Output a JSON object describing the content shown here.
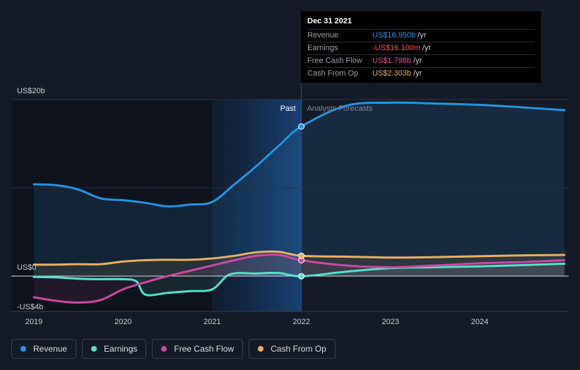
{
  "chart_data": {
    "type": "line",
    "x_ticks": [
      "2019",
      "2020",
      "2021",
      "2022",
      "2023",
      "2024"
    ],
    "y_labels": [
      "US$20b",
      "US$0",
      "-US$4b"
    ],
    "ylim": [
      -4,
      20
    ],
    "xlim": [
      2018.8,
      2024.95
    ],
    "region_labels": {
      "past": "Past",
      "forecast": "Analysts Forecasts"
    },
    "split_x": 2022.0,
    "series": [
      {
        "name": "Revenue",
        "color": "#2394df",
        "x": [
          2019.0,
          2019.25,
          2019.5,
          2019.75,
          2020.0,
          2020.25,
          2020.5,
          2020.75,
          2021.0,
          2021.25,
          2021.5,
          2021.75,
          2022.0,
          2022.5,
          2023.0,
          2023.5,
          2024.0,
          2024.5,
          2024.95
        ],
        "y": [
          10.4,
          10.3,
          9.8,
          8.8,
          8.6,
          8.3,
          7.9,
          8.1,
          8.4,
          10.4,
          12.5,
          14.8,
          16.95,
          19.3,
          19.65,
          19.55,
          19.4,
          19.1,
          18.8
        ]
      },
      {
        "name": "Earnings",
        "color": "#55e0c8",
        "x": [
          2019.0,
          2019.25,
          2019.5,
          2019.75,
          2020.0,
          2020.15,
          2020.25,
          2020.5,
          2020.75,
          2021.0,
          2021.2,
          2021.5,
          2021.75,
          2022.0,
          2022.5,
          2023.0,
          2023.5,
          2024.0,
          2024.5,
          2024.95
        ],
        "y": [
          -0.1,
          -0.15,
          -0.3,
          -0.35,
          -0.35,
          -0.6,
          -2.1,
          -1.9,
          -1.7,
          -1.5,
          0.2,
          0.3,
          0.35,
          -0.0161,
          0.5,
          0.9,
          1.0,
          1.1,
          1.25,
          1.4
        ]
      },
      {
        "name": "Free Cash Flow",
        "color": "#c94aa0",
        "x": [
          2019.0,
          2019.25,
          2019.5,
          2019.75,
          2020.0,
          2020.25,
          2020.5,
          2020.75,
          2021.0,
          2021.25,
          2021.5,
          2021.75,
          2022.0,
          2022.5,
          2023.0,
          2023.5,
          2024.0,
          2024.5,
          2024.95
        ],
        "y": [
          -2.4,
          -2.8,
          -3.0,
          -2.7,
          -1.5,
          -0.7,
          0.0,
          0.6,
          1.2,
          1.8,
          2.3,
          2.4,
          1.798,
          1.2,
          1.0,
          1.2,
          1.45,
          1.6,
          1.8
        ]
      },
      {
        "name": "Cash From Op",
        "color": "#e7b064",
        "x": [
          2019.0,
          2019.25,
          2019.5,
          2019.75,
          2020.0,
          2020.25,
          2020.5,
          2020.75,
          2021.0,
          2021.25,
          2021.5,
          2021.75,
          2022.0,
          2022.5,
          2023.0,
          2023.5,
          2024.0,
          2024.5,
          2024.95
        ],
        "y": [
          1.3,
          1.3,
          1.35,
          1.35,
          1.65,
          1.8,
          1.85,
          1.85,
          2.0,
          2.3,
          2.7,
          2.75,
          2.303,
          2.2,
          2.1,
          2.15,
          2.25,
          2.35,
          2.4
        ]
      }
    ]
  },
  "tooltip": {
    "date": "Dec 31 2021",
    "rows": [
      {
        "label": "Revenue",
        "value": "US$16.950b",
        "unit": "/yr",
        "color": "#2394df"
      },
      {
        "label": "Earnings",
        "value": "-US$16.100m",
        "unit": "/yr",
        "color": "#ff4a4a"
      },
      {
        "label": "Free Cash Flow",
        "value": "US$1.798b",
        "unit": "/yr",
        "color": "#e0559f"
      },
      {
        "label": "Cash From Op",
        "value": "US$2.303b",
        "unit": "/yr",
        "color": "#e7b064"
      }
    ]
  },
  "legend": [
    {
      "label": "Revenue",
      "color": "#2394df"
    },
    {
      "label": "Earnings",
      "color": "#55e0c8"
    },
    {
      "label": "Free Cash Flow",
      "color": "#c94aa0"
    },
    {
      "label": "Cash From Op",
      "color": "#e7b064"
    }
  ]
}
